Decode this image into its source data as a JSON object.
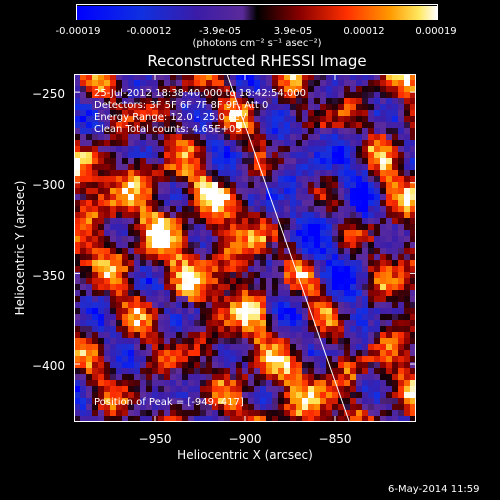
{
  "colorbar": {
    "tick_labels": [
      "-0.00019",
      "-0.00012",
      "-3.9e-05",
      "3.9e-05",
      "0.00012",
      "0.00019"
    ],
    "tick_values": [
      -0.00019,
      -0.00012,
      -3.9e-05,
      3.9e-05,
      0.00012,
      0.00019
    ],
    "unit_label": "(photons cm⁻² s⁻¹ asec⁻²)",
    "range": [
      -0.00019,
      0.00019
    ]
  },
  "chart_data": {
    "type": "heatmap",
    "title": "Reconstructed RHESSI Image",
    "xlabel": "Heliocentric X (arcsec)",
    "ylabel": "Heliocentric Y (arcsec)",
    "xlim": [
      -995,
      -805
    ],
    "ylim": [
      -432,
      -240
    ],
    "x_ticks": [
      -950,
      -900,
      -850
    ],
    "x_tick_labels": [
      "−950",
      "−900",
      "−850"
    ],
    "y_ticks": [
      -250,
      -300,
      -350,
      -400
    ],
    "y_tick_labels": [
      "−250",
      "−300",
      "−350",
      "−400"
    ],
    "limb_line": [
      [
        -910,
        -240
      ],
      [
        -842,
        -432
      ]
    ],
    "peak": [
      -949,
      -417
    ],
    "annotations": [
      "25-Jul-2012 18:38:40.000 to 18:42:54.000",
      "Detectors: 3F 5F 6F 7F 8F 9F, Att 0",
      "Energy Range: 12.0 - 25.0 keV",
      "Clean     Total counts: 4.65E+03"
    ],
    "peak_label": "Position of Peak = [-949,-417]"
  },
  "datestamp": "6-May-2014 11:59",
  "colors": {
    "background": "#000000",
    "text": "#ffffff"
  }
}
